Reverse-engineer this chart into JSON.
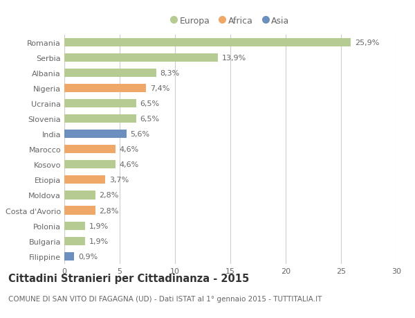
{
  "countries": [
    "Romania",
    "Serbia",
    "Albania",
    "Nigeria",
    "Ucraina",
    "Slovenia",
    "India",
    "Marocco",
    "Kosovo",
    "Etiopia",
    "Moldova",
    "Costa d'Avorio",
    "Polonia",
    "Bulgaria",
    "Filippine"
  ],
  "values": [
    25.9,
    13.9,
    8.3,
    7.4,
    6.5,
    6.5,
    5.6,
    4.6,
    4.6,
    3.7,
    2.8,
    2.8,
    1.9,
    1.9,
    0.9
  ],
  "labels": [
    "25,9%",
    "13,9%",
    "8,3%",
    "7,4%",
    "6,5%",
    "6,5%",
    "5,6%",
    "4,6%",
    "4,6%",
    "3,7%",
    "2,8%",
    "2,8%",
    "1,9%",
    "1,9%",
    "0,9%"
  ],
  "continents": [
    "Europa",
    "Europa",
    "Europa",
    "Africa",
    "Europa",
    "Europa",
    "Asia",
    "Africa",
    "Europa",
    "Africa",
    "Europa",
    "Africa",
    "Europa",
    "Europa",
    "Asia"
  ],
  "colors": {
    "Europa": "#b5cb92",
    "Africa": "#f0a868",
    "Asia": "#6b8fbf"
  },
  "legend": [
    "Europa",
    "Africa",
    "Asia"
  ],
  "xlim": [
    0,
    30
  ],
  "xticks": [
    0,
    5,
    10,
    15,
    20,
    25,
    30
  ],
  "title": "Cittadini Stranieri per Cittadinanza - 2015",
  "subtitle": "COMUNE DI SAN VITO DI FAGAGNA (UD) - Dati ISTAT al 1° gennaio 2015 - TUTTITALIA.IT",
  "bg_color": "#ffffff",
  "grid_color": "#cccccc",
  "bar_height": 0.55,
  "label_fontsize": 8,
  "tick_fontsize": 8,
  "title_fontsize": 10.5,
  "subtitle_fontsize": 7.5
}
